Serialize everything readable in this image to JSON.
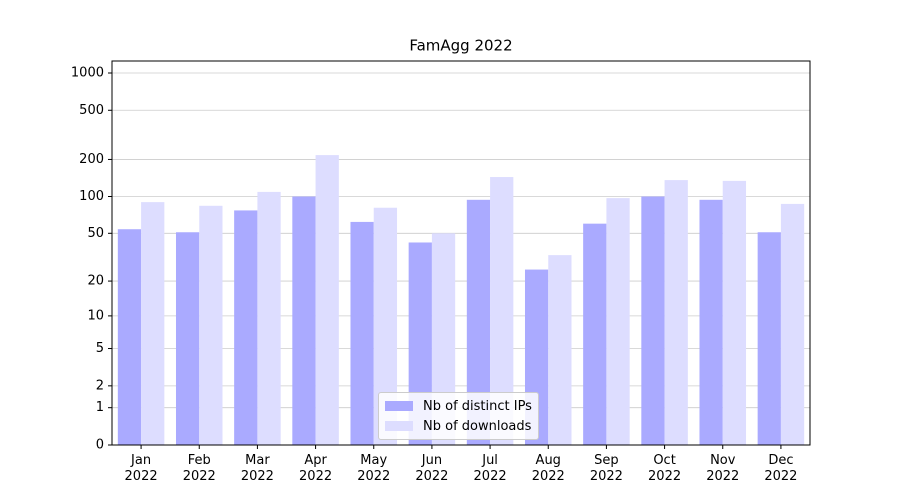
{
  "chart_data": {
    "type": "bar",
    "title": "FamAgg 2022",
    "yscale": "log1p",
    "categories": [
      "Jan\n2022",
      "Feb\n2022",
      "Mar\n2022",
      "Apr\n2022",
      "May\n2022",
      "Jun\n2022",
      "Jul\n2022",
      "Aug\n2022",
      "Sep\n2022",
      "Oct\n2022",
      "Nov\n2022",
      "Dec\n2022"
    ],
    "series": [
      {
        "name": "Nb of distinct IPs",
        "color": "#aaaaff",
        "values": [
          54,
          51,
          77,
          100,
          62,
          42,
          94,
          25,
          60,
          100,
          94,
          51
        ]
      },
      {
        "name": "Nb of downloads",
        "color": "#ddddff",
        "values": [
          90,
          84,
          109,
          217,
          81,
          50,
          144,
          33,
          97,
          136,
          134,
          87
        ]
      }
    ],
    "ylim": [
      0,
      1250
    ],
    "yticks": [
      0,
      1,
      2,
      5,
      10,
      20,
      50,
      100,
      200,
      500,
      1000
    ],
    "grid": true,
    "legend": "lower center"
  }
}
